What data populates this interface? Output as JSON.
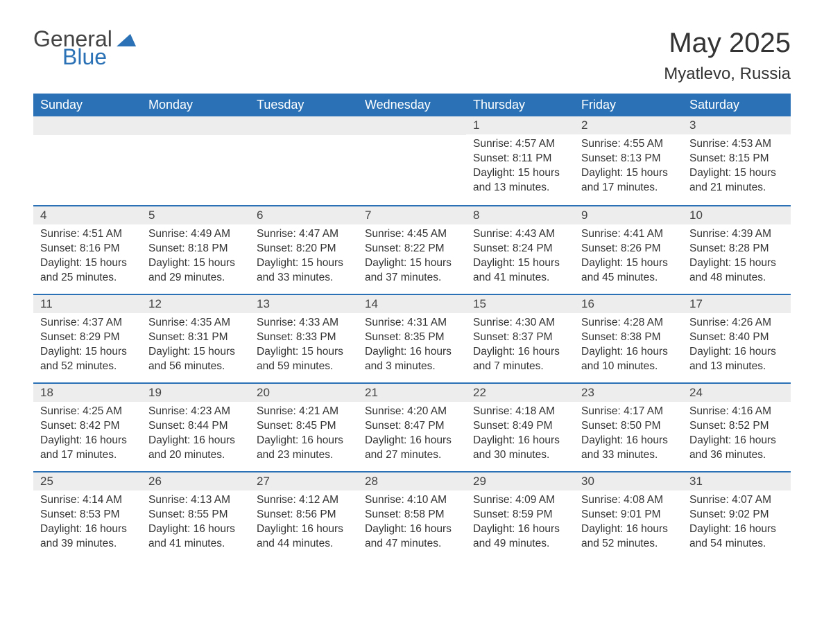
{
  "logo": {
    "line1": "General",
    "line2": "Blue"
  },
  "title": "May 2025",
  "location": "Myatlevo, Russia",
  "weekdays": [
    "Sunday",
    "Monday",
    "Tuesday",
    "Wednesday",
    "Thursday",
    "Friday",
    "Saturday"
  ],
  "colors": {
    "header_bg": "#2a72b5",
    "header_text": "#ffffff",
    "daynum_bg": "#ededed",
    "text": "#333333",
    "row_border": "#2a72b5"
  },
  "weeks": [
    [
      null,
      null,
      null,
      null,
      {
        "n": "1",
        "sunrise": "Sunrise: 4:57 AM",
        "sunset": "Sunset: 8:11 PM",
        "dl1": "Daylight: 15 hours",
        "dl2": "and 13 minutes."
      },
      {
        "n": "2",
        "sunrise": "Sunrise: 4:55 AM",
        "sunset": "Sunset: 8:13 PM",
        "dl1": "Daylight: 15 hours",
        "dl2": "and 17 minutes."
      },
      {
        "n": "3",
        "sunrise": "Sunrise: 4:53 AM",
        "sunset": "Sunset: 8:15 PM",
        "dl1": "Daylight: 15 hours",
        "dl2": "and 21 minutes."
      }
    ],
    [
      {
        "n": "4",
        "sunrise": "Sunrise: 4:51 AM",
        "sunset": "Sunset: 8:16 PM",
        "dl1": "Daylight: 15 hours",
        "dl2": "and 25 minutes."
      },
      {
        "n": "5",
        "sunrise": "Sunrise: 4:49 AM",
        "sunset": "Sunset: 8:18 PM",
        "dl1": "Daylight: 15 hours",
        "dl2": "and 29 minutes."
      },
      {
        "n": "6",
        "sunrise": "Sunrise: 4:47 AM",
        "sunset": "Sunset: 8:20 PM",
        "dl1": "Daylight: 15 hours",
        "dl2": "and 33 minutes."
      },
      {
        "n": "7",
        "sunrise": "Sunrise: 4:45 AM",
        "sunset": "Sunset: 8:22 PM",
        "dl1": "Daylight: 15 hours",
        "dl2": "and 37 minutes."
      },
      {
        "n": "8",
        "sunrise": "Sunrise: 4:43 AM",
        "sunset": "Sunset: 8:24 PM",
        "dl1": "Daylight: 15 hours",
        "dl2": "and 41 minutes."
      },
      {
        "n": "9",
        "sunrise": "Sunrise: 4:41 AM",
        "sunset": "Sunset: 8:26 PM",
        "dl1": "Daylight: 15 hours",
        "dl2": "and 45 minutes."
      },
      {
        "n": "10",
        "sunrise": "Sunrise: 4:39 AM",
        "sunset": "Sunset: 8:28 PM",
        "dl1": "Daylight: 15 hours",
        "dl2": "and 48 minutes."
      }
    ],
    [
      {
        "n": "11",
        "sunrise": "Sunrise: 4:37 AM",
        "sunset": "Sunset: 8:29 PM",
        "dl1": "Daylight: 15 hours",
        "dl2": "and 52 minutes."
      },
      {
        "n": "12",
        "sunrise": "Sunrise: 4:35 AM",
        "sunset": "Sunset: 8:31 PM",
        "dl1": "Daylight: 15 hours",
        "dl2": "and 56 minutes."
      },
      {
        "n": "13",
        "sunrise": "Sunrise: 4:33 AM",
        "sunset": "Sunset: 8:33 PM",
        "dl1": "Daylight: 15 hours",
        "dl2": "and 59 minutes."
      },
      {
        "n": "14",
        "sunrise": "Sunrise: 4:31 AM",
        "sunset": "Sunset: 8:35 PM",
        "dl1": "Daylight: 16 hours",
        "dl2": "and 3 minutes."
      },
      {
        "n": "15",
        "sunrise": "Sunrise: 4:30 AM",
        "sunset": "Sunset: 8:37 PM",
        "dl1": "Daylight: 16 hours",
        "dl2": "and 7 minutes."
      },
      {
        "n": "16",
        "sunrise": "Sunrise: 4:28 AM",
        "sunset": "Sunset: 8:38 PM",
        "dl1": "Daylight: 16 hours",
        "dl2": "and 10 minutes."
      },
      {
        "n": "17",
        "sunrise": "Sunrise: 4:26 AM",
        "sunset": "Sunset: 8:40 PM",
        "dl1": "Daylight: 16 hours",
        "dl2": "and 13 minutes."
      }
    ],
    [
      {
        "n": "18",
        "sunrise": "Sunrise: 4:25 AM",
        "sunset": "Sunset: 8:42 PM",
        "dl1": "Daylight: 16 hours",
        "dl2": "and 17 minutes."
      },
      {
        "n": "19",
        "sunrise": "Sunrise: 4:23 AM",
        "sunset": "Sunset: 8:44 PM",
        "dl1": "Daylight: 16 hours",
        "dl2": "and 20 minutes."
      },
      {
        "n": "20",
        "sunrise": "Sunrise: 4:21 AM",
        "sunset": "Sunset: 8:45 PM",
        "dl1": "Daylight: 16 hours",
        "dl2": "and 23 minutes."
      },
      {
        "n": "21",
        "sunrise": "Sunrise: 4:20 AM",
        "sunset": "Sunset: 8:47 PM",
        "dl1": "Daylight: 16 hours",
        "dl2": "and 27 minutes."
      },
      {
        "n": "22",
        "sunrise": "Sunrise: 4:18 AM",
        "sunset": "Sunset: 8:49 PM",
        "dl1": "Daylight: 16 hours",
        "dl2": "and 30 minutes."
      },
      {
        "n": "23",
        "sunrise": "Sunrise: 4:17 AM",
        "sunset": "Sunset: 8:50 PM",
        "dl1": "Daylight: 16 hours",
        "dl2": "and 33 minutes."
      },
      {
        "n": "24",
        "sunrise": "Sunrise: 4:16 AM",
        "sunset": "Sunset: 8:52 PM",
        "dl1": "Daylight: 16 hours",
        "dl2": "and 36 minutes."
      }
    ],
    [
      {
        "n": "25",
        "sunrise": "Sunrise: 4:14 AM",
        "sunset": "Sunset: 8:53 PM",
        "dl1": "Daylight: 16 hours",
        "dl2": "and 39 minutes."
      },
      {
        "n": "26",
        "sunrise": "Sunrise: 4:13 AM",
        "sunset": "Sunset: 8:55 PM",
        "dl1": "Daylight: 16 hours",
        "dl2": "and 41 minutes."
      },
      {
        "n": "27",
        "sunrise": "Sunrise: 4:12 AM",
        "sunset": "Sunset: 8:56 PM",
        "dl1": "Daylight: 16 hours",
        "dl2": "and 44 minutes."
      },
      {
        "n": "28",
        "sunrise": "Sunrise: 4:10 AM",
        "sunset": "Sunset: 8:58 PM",
        "dl1": "Daylight: 16 hours",
        "dl2": "and 47 minutes."
      },
      {
        "n": "29",
        "sunrise": "Sunrise: 4:09 AM",
        "sunset": "Sunset: 8:59 PM",
        "dl1": "Daylight: 16 hours",
        "dl2": "and 49 minutes."
      },
      {
        "n": "30",
        "sunrise": "Sunrise: 4:08 AM",
        "sunset": "Sunset: 9:01 PM",
        "dl1": "Daylight: 16 hours",
        "dl2": "and 52 minutes."
      },
      {
        "n": "31",
        "sunrise": "Sunrise: 4:07 AM",
        "sunset": "Sunset: 9:02 PM",
        "dl1": "Daylight: 16 hours",
        "dl2": "and 54 minutes."
      }
    ]
  ]
}
